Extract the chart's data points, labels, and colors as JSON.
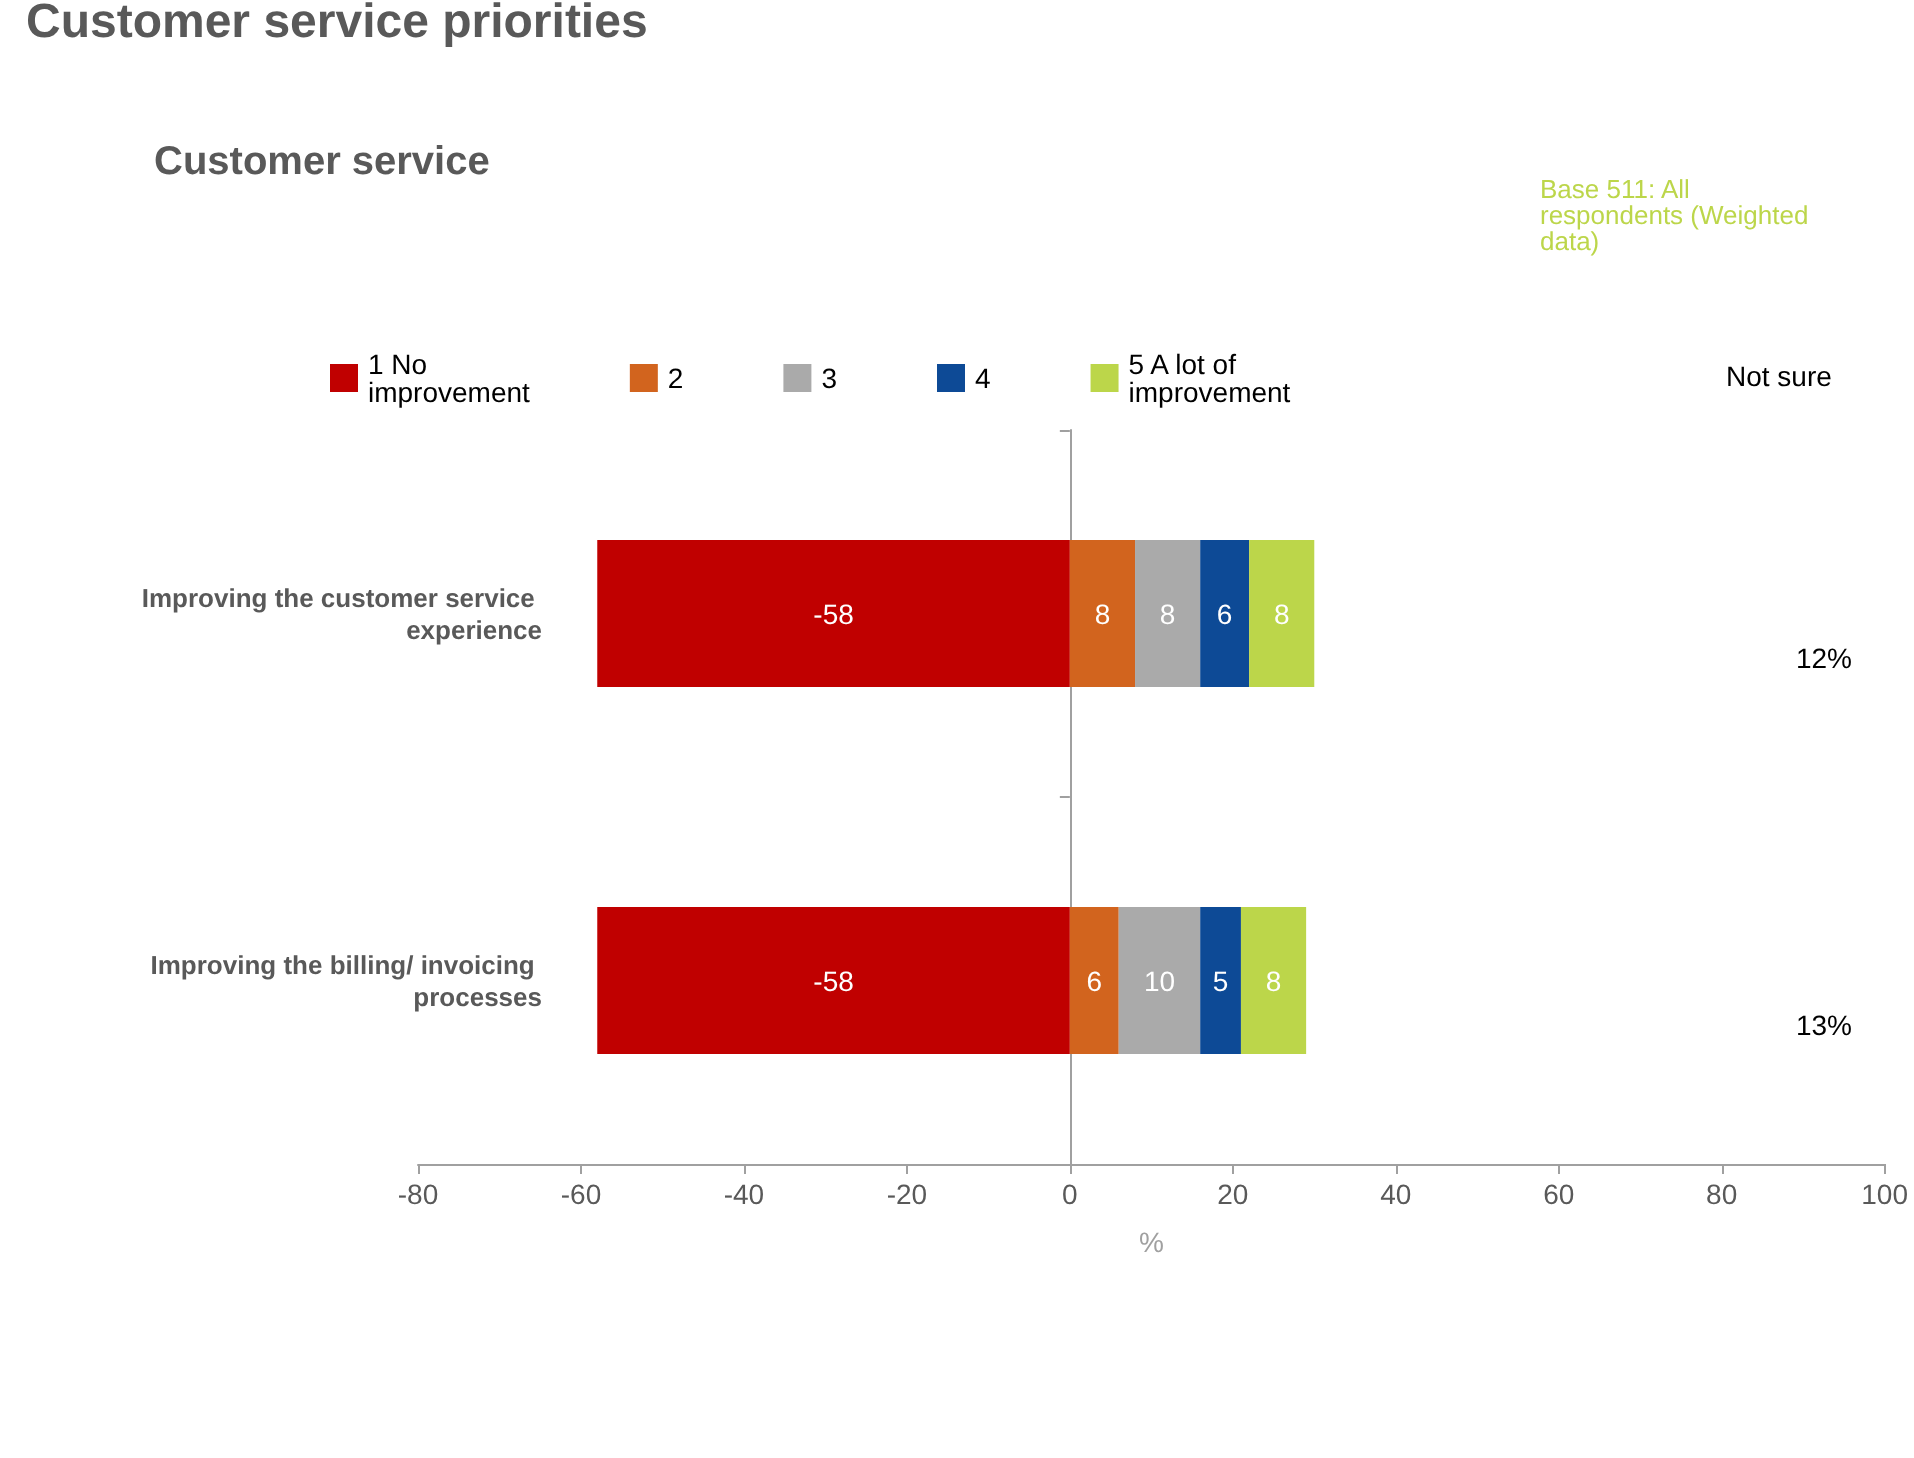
{
  "chart_data": {
    "type": "bar",
    "orientation": "horizontal",
    "stacked": true,
    "title": "Customer service priorities",
    "subtitle": "Customer service",
    "xlabel": "%",
    "categories": [
      "Improving the customer service experience",
      "Improving the billing/ invoicing processes"
    ],
    "series": [
      {
        "name": "1 No improvement",
        "color": "#c00000",
        "values": [
          -58,
          -58
        ]
      },
      {
        "name": "2",
        "color": "#d2641e",
        "values": [
          8,
          6
        ]
      },
      {
        "name": "3",
        "color": "#aaaaaa",
        "values": [
          8,
          10
        ]
      },
      {
        "name": "4",
        "color": "#0d4a96",
        "values": [
          6,
          5
        ]
      },
      {
        "name": "5 A lot of improvement",
        "color": "#bcd64a",
        "values": [
          8,
          8
        ]
      }
    ],
    "xlim": [
      -80,
      100
    ],
    "xticks": [
      -80,
      -60,
      -40,
      -20,
      0,
      20,
      40,
      60,
      80,
      100
    ],
    "legend": "top",
    "data_labels": true,
    "annotations": [
      "Base 511: All respondents (Weighted data)",
      "Not sure",
      "12%",
      "13%"
    ]
  }
}
